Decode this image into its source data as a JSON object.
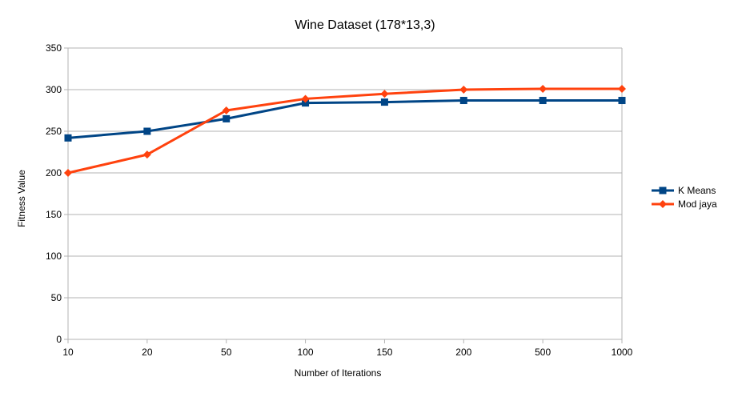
{
  "chart_data": {
    "type": "line",
    "title": "Wine Dataset (178*13,3)",
    "xlabel": "Number of Iterations",
    "ylabel": "Fitness Value",
    "categories": [
      "10",
      "20",
      "50",
      "100",
      "150",
      "200",
      "500",
      "1000"
    ],
    "ylim": [
      0,
      350
    ],
    "yticks": [
      0,
      50,
      100,
      150,
      200,
      250,
      300,
      350
    ],
    "grid": true,
    "legend_position": "right",
    "series": [
      {
        "name": "K Means",
        "color": "#004586",
        "marker": "square",
        "values": [
          242,
          250,
          265,
          284,
          285,
          287,
          287,
          287
        ]
      },
      {
        "name": "Mod jaya",
        "color": "#ff420e",
        "marker": "diamond",
        "values": [
          200,
          222,
          275,
          289,
          295,
          300,
          301,
          301
        ]
      }
    ]
  }
}
